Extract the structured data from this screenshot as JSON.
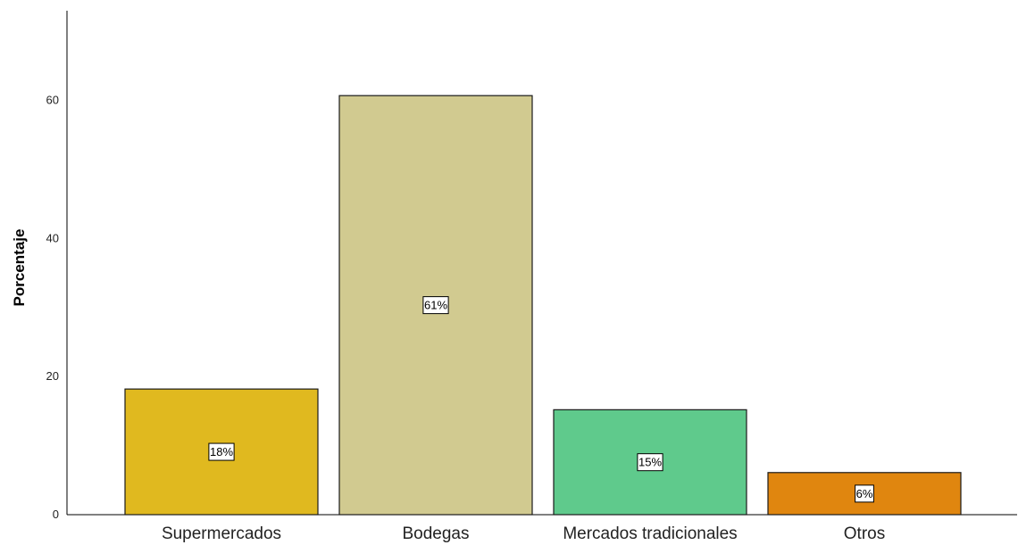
{
  "chart_data": {
    "type": "bar",
    "ylabel": "Porcentaje",
    "xlabel": "",
    "ylim": [
      0,
      73
    ],
    "yticks": [
      0,
      20,
      40,
      60
    ],
    "grid": false,
    "categories": [
      "Supermercados",
      "Bodegas",
      "Mercados tradicionales",
      "Otros"
    ],
    "values": [
      18.2,
      60.7,
      15.2,
      6.1
    ],
    "data_labels": [
      "18%",
      "61%",
      "15%",
      "6%"
    ],
    "colors": [
      "#e0b91f",
      "#d1ca90",
      "#5fca8c",
      "#e0860f"
    ]
  }
}
